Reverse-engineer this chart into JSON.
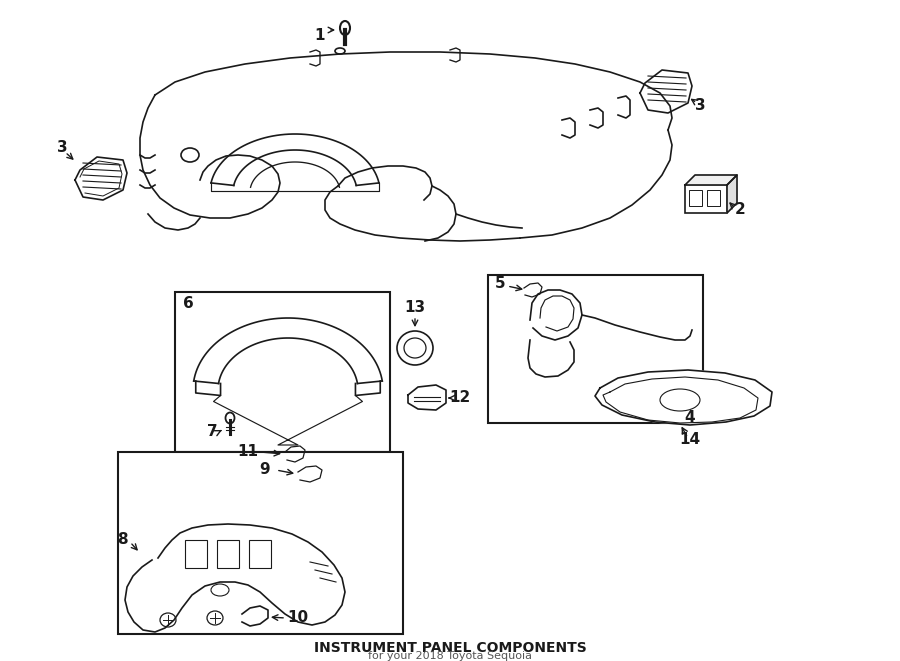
{
  "title": "INSTRUMENT PANEL COMPONENTS",
  "subtitle": "for your 2018 Toyota Sequoia",
  "bg_color": "#ffffff",
  "line_color": "#1a1a1a",
  "fig_width": 9.0,
  "fig_height": 6.61,
  "dpi": 100
}
